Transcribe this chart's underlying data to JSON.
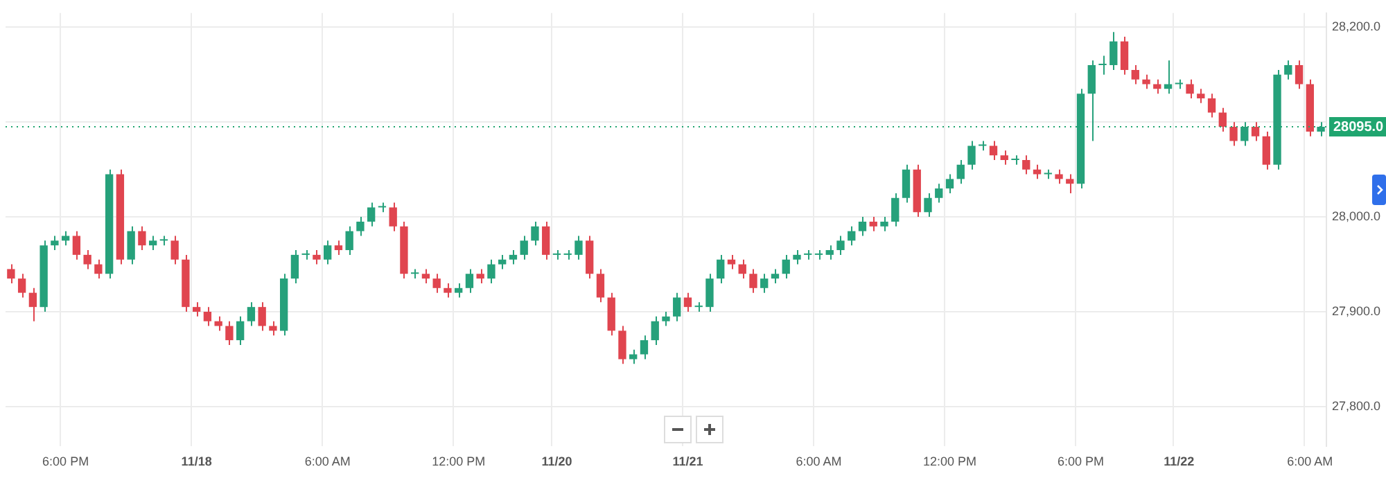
{
  "chart_data": {
    "type": "candlestick",
    "categories": [
      null,
      null,
      null,
      null,
      null,
      "6:00 PM",
      null,
      null,
      null,
      null,
      null,
      null,
      null,
      null,
      null,
      null,
      null,
      "11/18",
      null,
      null,
      null,
      null,
      null,
      null,
      null,
      null,
      null,
      null,
      null,
      "6:00 AM",
      null,
      null,
      null,
      null,
      null,
      null,
      null,
      null,
      null,
      null,
      null,
      "12:00 PM",
      null,
      null,
      null,
      null,
      null,
      null,
      null,
      null,
      "11/20",
      null,
      null,
      null,
      null,
      null,
      null,
      null,
      null,
      null,
      null,
      null,
      "11/21",
      null,
      null,
      null,
      null,
      null,
      null,
      null,
      null,
      null,
      null,
      null,
      "6:00 AM",
      null,
      null,
      null,
      null,
      null,
      null,
      null,
      null,
      null,
      null,
      null,
      "12:00 PM",
      null,
      null,
      null,
      null,
      null,
      null,
      null,
      null,
      null,
      null,
      null,
      "6:00 PM",
      null,
      null,
      null,
      null,
      null,
      null,
      null,
      null,
      "11/22",
      null,
      null,
      null,
      null,
      null,
      null,
      null,
      null,
      null,
      null,
      null,
      "6:00 AM",
      null
    ],
    "ohlc": [
      [
        27945,
        27950,
        27930,
        27935
      ],
      [
        27935,
        27940,
        27915,
        27920
      ],
      [
        27920,
        27925,
        27890,
        27905
      ],
      [
        27905,
        27975,
        27900,
        27970
      ],
      [
        27970,
        27980,
        27965,
        27975
      ],
      [
        27975,
        27985,
        27970,
        27980
      ],
      [
        27980,
        27985,
        27955,
        27960
      ],
      [
        27960,
        27965,
        27945,
        27950
      ],
      [
        27950,
        27955,
        27935,
        27940
      ],
      [
        27940,
        28050,
        27935,
        28045
      ],
      [
        28045,
        28050,
        27950,
        27955
      ],
      [
        27955,
        27990,
        27950,
        27985
      ],
      [
        27985,
        27990,
        27965,
        27970
      ],
      [
        27970,
        27980,
        27965,
        27975
      ],
      [
        27975,
        27980,
        27970,
        27975
      ],
      [
        27975,
        27980,
        27950,
        27955
      ],
      [
        27955,
        27960,
        27900,
        27905
      ],
      [
        27905,
        27910,
        27895,
        27900
      ],
      [
        27900,
        27905,
        27885,
        27890
      ],
      [
        27890,
        27895,
        27880,
        27885
      ],
      [
        27885,
        27890,
        27865,
        27870
      ],
      [
        27870,
        27895,
        27865,
        27890
      ],
      [
        27890,
        27910,
        27885,
        27905
      ],
      [
        27905,
        27910,
        27880,
        27885
      ],
      [
        27885,
        27890,
        27875,
        27880
      ],
      [
        27880,
        27940,
        27875,
        27935
      ],
      [
        27935,
        27965,
        27930,
        27960
      ],
      [
        27960,
        27965,
        27955,
        27960
      ],
      [
        27960,
        27965,
        27950,
        27955
      ],
      [
        27955,
        27975,
        27950,
        27970
      ],
      [
        27970,
        27975,
        27960,
        27965
      ],
      [
        27965,
        27990,
        27960,
        27985
      ],
      [
        27985,
        28000,
        27980,
        27995
      ],
      [
        27995,
        28015,
        27990,
        28010
      ],
      [
        28010,
        28015,
        28005,
        28010
      ],
      [
        28010,
        28015,
        27985,
        27990
      ],
      [
        27990,
        27995,
        27935,
        27940
      ],
      [
        27940,
        27945,
        27935,
        27940
      ],
      [
        27940,
        27945,
        27930,
        27935
      ],
      [
        27935,
        27940,
        27920,
        27925
      ],
      [
        27925,
        27930,
        27915,
        27920
      ],
      [
        27920,
        27930,
        27915,
        27925
      ],
      [
        27925,
        27945,
        27920,
        27940
      ],
      [
        27940,
        27945,
        27930,
        27935
      ],
      [
        27935,
        27955,
        27930,
        27950
      ],
      [
        27950,
        27960,
        27945,
        27955
      ],
      [
        27955,
        27965,
        27950,
        27960
      ],
      [
        27960,
        27980,
        27955,
        27975
      ],
      [
        27975,
        27995,
        27970,
        27990
      ],
      [
        27990,
        27995,
        27955,
        27960
      ],
      [
        27960,
        27965,
        27955,
        27960
      ],
      [
        27960,
        27965,
        27955,
        27960
      ],
      [
        27960,
        27980,
        27955,
        27975
      ],
      [
        27975,
        27980,
        27935,
        27940
      ],
      [
        27940,
        27945,
        27910,
        27915
      ],
      [
        27915,
        27920,
        27875,
        27880
      ],
      [
        27880,
        27885,
        27845,
        27850
      ],
      [
        27850,
        27860,
        27845,
        27855
      ],
      [
        27855,
        27875,
        27850,
        27870
      ],
      [
        27870,
        27895,
        27865,
        27890
      ],
      [
        27890,
        27900,
        27885,
        27895
      ],
      [
        27895,
        27920,
        27890,
        27915
      ],
      [
        27915,
        27920,
        27900,
        27905
      ],
      [
        27905,
        27910,
        27900,
        27905
      ],
      [
        27905,
        27940,
        27900,
        27935
      ],
      [
        27935,
        27960,
        27930,
        27955
      ],
      [
        27955,
        27960,
        27945,
        27950
      ],
      [
        27950,
        27955,
        27935,
        27940
      ],
      [
        27940,
        27945,
        27920,
        27925
      ],
      [
        27925,
        27940,
        27920,
        27935
      ],
      [
        27935,
        27945,
        27930,
        27940
      ],
      [
        27940,
        27960,
        27935,
        27955
      ],
      [
        27955,
        27965,
        27950,
        27960
      ],
      [
        27960,
        27965,
        27955,
        27960
      ],
      [
        27960,
        27965,
        27955,
        27960
      ],
      [
        27960,
        27970,
        27955,
        27965
      ],
      [
        27965,
        27980,
        27960,
        27975
      ],
      [
        27975,
        27990,
        27970,
        27985
      ],
      [
        27985,
        28000,
        27980,
        27995
      ],
      [
        27995,
        28000,
        27985,
        27990
      ],
      [
        27990,
        28000,
        27985,
        27995
      ],
      [
        27995,
        28025,
        27990,
        28020
      ],
      [
        28020,
        28055,
        28015,
        28050
      ],
      [
        28050,
        28055,
        28000,
        28005
      ],
      [
        28005,
        28025,
        28000,
        28020
      ],
      [
        28020,
        28035,
        28015,
        28030
      ],
      [
        28030,
        28045,
        28025,
        28040
      ],
      [
        28040,
        28060,
        28035,
        28055
      ],
      [
        28055,
        28080,
        28050,
        28075
      ],
      [
        28075,
        28080,
        28070,
        28075
      ],
      [
        28075,
        28080,
        28060,
        28065
      ],
      [
        28065,
        28070,
        28055,
        28060
      ],
      [
        28060,
        28065,
        28055,
        28060
      ],
      [
        28060,
        28065,
        28045,
        28050
      ],
      [
        28050,
        28055,
        28040,
        28045
      ],
      [
        28045,
        28050,
        28040,
        28045
      ],
      [
        28045,
        28050,
        28035,
        28040
      ],
      [
        28040,
        28045,
        28025,
        28035
      ],
      [
        28035,
        28135,
        28030,
        28130
      ],
      [
        28130,
        28165,
        28080,
        28160
      ],
      [
        28160,
        28170,
        28150,
        28160
      ],
      [
        28160,
        28195,
        28155,
        28185
      ],
      [
        28185,
        28190,
        28150,
        28155
      ],
      [
        28155,
        28160,
        28140,
        28145
      ],
      [
        28145,
        28150,
        28135,
        28140
      ],
      [
        28140,
        28145,
        28130,
        28135
      ],
      [
        28135,
        28165,
        28130,
        28140
      ],
      [
        28140,
        28145,
        28135,
        28140
      ],
      [
        28140,
        28145,
        28125,
        28130
      ],
      [
        28130,
        28135,
        28120,
        28125
      ],
      [
        28125,
        28130,
        28105,
        28110
      ],
      [
        28110,
        28115,
        28090,
        28095
      ],
      [
        28095,
        28100,
        28075,
        28080
      ],
      [
        28080,
        28100,
        28075,
        28095
      ],
      [
        28095,
        28100,
        28080,
        28085
      ],
      [
        28085,
        28090,
        28050,
        28055
      ],
      [
        28055,
        28155,
        28050,
        28150
      ],
      [
        28150,
        28165,
        28145,
        28160
      ],
      [
        28160,
        28165,
        28135,
        28140
      ],
      [
        28140,
        28145,
        28085,
        28090
      ],
      [
        28090,
        28100,
        28085,
        28095
      ]
    ],
    "colors": [
      "#e0454f",
      "#e0454f",
      "#e0454f",
      "#26a17b",
      "#26a17b",
      "#26a17b",
      "#e0454f",
      "#e0454f",
      "#e0454f",
      "#26a17b",
      "#e0454f",
      "#26a17b",
      "#e0454f",
      "#26a17b",
      "#26a17b",
      "#e0454f",
      "#e0454f",
      "#e0454f",
      "#e0454f",
      "#e0454f",
      "#e0454f",
      "#26a17b",
      "#26a17b",
      "#e0454f",
      "#e0454f",
      "#26a17b",
      "#26a17b",
      "#26a17b",
      "#e0454f",
      "#26a17b",
      "#e0454f",
      "#26a17b",
      "#26a17b",
      "#26a17b",
      "#26a17b",
      "#e0454f",
      "#e0454f",
      "#26a17b",
      "#e0454f",
      "#e0454f",
      "#e0454f",
      "#26a17b",
      "#26a17b",
      "#e0454f",
      "#26a17b",
      "#26a17b",
      "#26a17b",
      "#26a17b",
      "#26a17b",
      "#e0454f",
      "#26a17b",
      "#26a17b",
      "#26a17b",
      "#e0454f",
      "#e0454f",
      "#e0454f",
      "#e0454f",
      "#26a17b",
      "#26a17b",
      "#26a17b",
      "#26a17b",
      "#26a17b",
      "#e0454f",
      "#26a17b",
      "#26a17b",
      "#26a17b",
      "#e0454f",
      "#e0454f",
      "#e0454f",
      "#26a17b",
      "#26a17b",
      "#26a17b",
      "#26a17b",
      "#26a17b",
      "#26a17b",
      "#26a17b",
      "#26a17b",
      "#26a17b",
      "#26a17b",
      "#e0454f",
      "#26a17b",
      "#26a17b",
      "#26a17b",
      "#e0454f",
      "#26a17b",
      "#26a17b",
      "#26a17b",
      "#26a17b",
      "#26a17b",
      "#26a17b",
      "#e0454f",
      "#e0454f",
      "#26a17b",
      "#e0454f",
      "#e0454f",
      "#26a17b",
      "#e0454f",
      "#e0454f",
      "#26a17b",
      "#26a17b",
      "#26a17b",
      "#26a17b",
      "#e0454f",
      "#e0454f",
      "#e0454f",
      "#e0454f",
      "#26a17b",
      "#26a17b",
      "#e0454f",
      "#e0454f",
      "#e0454f",
      "#e0454f",
      "#e0454f",
      "#26a17b",
      "#e0454f",
      "#e0454f",
      "#26a17b",
      "#26a17b",
      "#e0454f",
      "#e0454f",
      "#26a17b"
    ],
    "ylim": [
      27758,
      28215
    ],
    "yticks": [
      {
        "value": 27800,
        "label": "27,800.0"
      },
      {
        "value": 27900,
        "label": "27,900.0"
      },
      {
        "value": 28000,
        "label": "28,000.0"
      },
      {
        "value": 28100,
        "label": null
      },
      {
        "value": 28200,
        "label": "28,200.0"
      }
    ],
    "ref_lines": [
      {
        "axis": "y",
        "value": 28095,
        "label": "28095.0",
        "color": "#1fa56f",
        "line_style": "dotted"
      }
    ],
    "grid": true
  }
}
